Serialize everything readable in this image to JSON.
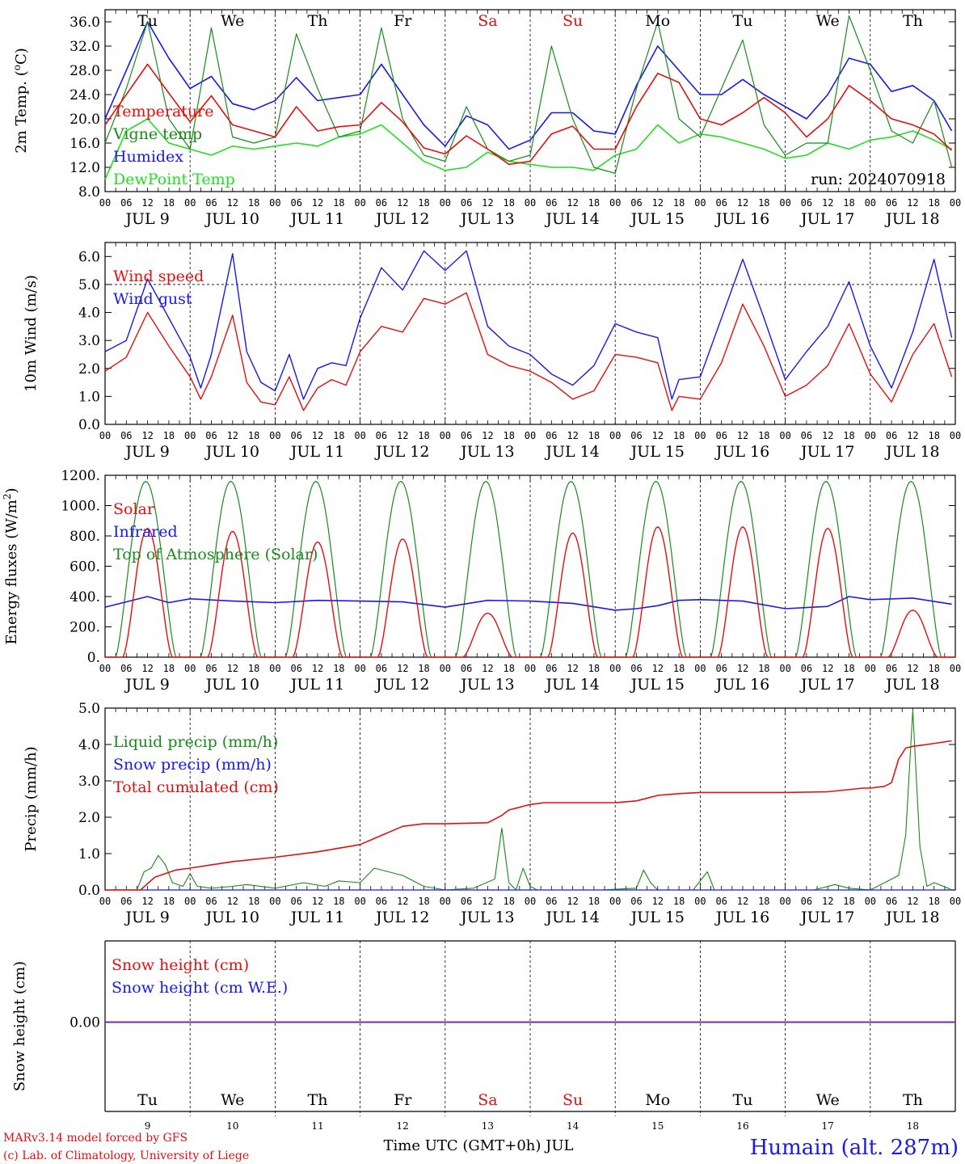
{
  "colors": {
    "red": "#e01010",
    "green": "#1a8a1a",
    "blue": "#1a1ae0",
    "light_green": "#22dd22",
    "purple": "#7b2a9a",
    "black": "#000000",
    "weekend": "#e01010"
  },
  "day_names": [
    "Tu",
    "We",
    "Th",
    "Fr",
    "Sa",
    "Su",
    "Mo",
    "Tu",
    "We",
    "Th"
  ],
  "weekend_idx": [
    4,
    5
  ],
  "date_labels": [
    "JUL  9",
    "JUL 10",
    "JUL 11",
    "JUL 12",
    "JUL 13",
    "JUL 14",
    "JUL 15",
    "JUL 16",
    "JUL 17",
    "JUL 18"
  ],
  "hour_ticks": [
    "00",
    "06",
    "12",
    "18"
  ],
  "final_tick": "00",
  "day_numbers": [
    "9",
    "10",
    "11",
    "12",
    "13",
    "14",
    "15",
    "16",
    "17",
    "18"
  ],
  "bottom_axis_title": "Time UTC (GMT+0h) JUL",
  "footer": {
    "line1": "MARv3.14 model forced by GFS",
    "line2": "(c) Lab. of Climatology, University of Liege",
    "station": "Humain (alt. 287m)"
  },
  "chart_data": [
    {
      "type": "line",
      "id": "temperature",
      "ylabel": "2m Temp. (",
      "ylabel_unit": "o",
      "ylabel_end": "C)",
      "ylim": [
        8,
        38
      ],
      "yticks": [
        "8.0",
        "12.0",
        "16.0",
        "20.0",
        "24.0",
        "28.0",
        "32.0",
        "36.0"
      ],
      "ytick_values": [
        8,
        12,
        16,
        20,
        24,
        28,
        32,
        36
      ],
      "annotation": "run: 2024070918",
      "legend": [
        "Temperature",
        "Vigne temp",
        "Humidex",
        "DewPoint Temp"
      ],
      "series": [
        {
          "name": "Temperature",
          "color": "red",
          "x": [
            0,
            12,
            24,
            30,
            36,
            42,
            48,
            54,
            60,
            66,
            72,
            78,
            84,
            90,
            96,
            102,
            108,
            114,
            120,
            126,
            132,
            138,
            144,
            150,
            156,
            162,
            168,
            174,
            180,
            186,
            192,
            198,
            204,
            210,
            216,
            222,
            228,
            234,
            239
          ],
          "y": [
            19,
            29,
            19.5,
            23.8,
            19,
            18,
            17,
            22,
            18,
            18.7,
            19,
            22.7,
            19.5,
            15.2,
            14.2,
            17.2,
            15,
            12.5,
            13,
            17.5,
            18.8,
            15,
            15,
            22,
            27.5,
            26,
            20,
            19,
            21,
            23.5,
            21,
            17,
            20,
            25.5,
            23,
            20,
            19,
            17.5,
            14.8
          ]
        },
        {
          "name": "Vigne temp",
          "color": "green",
          "x": [
            0,
            6,
            12,
            18,
            24,
            30,
            36,
            42,
            48,
            54,
            60,
            66,
            72,
            78,
            84,
            90,
            96,
            102,
            108,
            114,
            120,
            126,
            132,
            138,
            144,
            150,
            156,
            162,
            168,
            174,
            180,
            186,
            192,
            198,
            204,
            210,
            216,
            222,
            228,
            234,
            239
          ],
          "y": [
            16,
            25,
            36,
            20,
            15,
            35,
            17,
            16,
            17,
            34,
            25,
            17,
            18,
            35,
            20,
            14,
            13,
            22,
            15,
            13,
            14,
            32,
            20,
            12,
            11,
            25,
            36,
            20,
            17,
            25,
            33,
            19,
            14,
            16,
            16,
            37,
            28,
            18,
            16,
            23,
            12
          ]
        },
        {
          "name": "Humidex",
          "color": "blue",
          "x": [
            0,
            12,
            18,
            24,
            30,
            36,
            42,
            48,
            54,
            60,
            66,
            72,
            78,
            84,
            90,
            96,
            102,
            108,
            114,
            120,
            126,
            132,
            138,
            144,
            150,
            156,
            162,
            168,
            174,
            180,
            186,
            192,
            198,
            204,
            210,
            216,
            222,
            228,
            234,
            239
          ],
          "y": [
            20,
            36,
            30,
            25,
            27,
            22.5,
            21.5,
            23,
            26.8,
            23,
            23.5,
            24,
            29,
            24,
            19,
            15.5,
            20.5,
            19,
            15,
            16.5,
            21,
            21,
            18,
            17.5,
            25.5,
            32,
            28,
            24,
            24,
            26.5,
            24,
            22,
            20,
            24,
            30,
            29,
            24.5,
            25.5,
            23,
            18
          ]
        },
        {
          "name": "DewPoint Temp",
          "color": "light_green",
          "x": [
            0,
            6,
            12,
            18,
            24,
            30,
            36,
            42,
            48,
            54,
            60,
            66,
            72,
            78,
            84,
            90,
            96,
            102,
            108,
            114,
            120,
            126,
            132,
            138,
            144,
            150,
            156,
            162,
            168,
            174,
            180,
            186,
            192,
            198,
            204,
            210,
            216,
            222,
            228,
            234,
            239
          ],
          "y": [
            10,
            18,
            20,
            16,
            15,
            14,
            15.5,
            15,
            15.5,
            16,
            15.5,
            17,
            17.5,
            19,
            16,
            13,
            11.5,
            12,
            14.5,
            13,
            12.5,
            12,
            12,
            11.5,
            14,
            15,
            19,
            16,
            17.5,
            17,
            16,
            15,
            13.5,
            14,
            16,
            15,
            16.5,
            17,
            18,
            16.5,
            15
          ]
        }
      ]
    },
    {
      "type": "line",
      "id": "wind",
      "ylabel": "10m Wind (m/s)",
      "ylim": [
        0,
        6.5
      ],
      "yticks": [
        "0.0",
        "1.0",
        "2.0",
        "3.0",
        "4.0",
        "5.0",
        "6.0"
      ],
      "ytick_values": [
        0,
        1,
        2,
        3,
        4,
        5,
        6
      ],
      "reference_line": 5,
      "legend": [
        "Wind speed",
        "Wind gust"
      ],
      "series": [
        {
          "name": "Wind speed",
          "color": "red",
          "x": [
            0,
            6,
            12,
            18,
            24,
            27,
            30,
            36,
            40,
            44,
            48,
            52,
            56,
            60,
            64,
            68,
            72,
            78,
            84,
            90,
            96,
            102,
            108,
            114,
            120,
            126,
            132,
            138,
            144,
            150,
            156,
            160,
            162,
            168,
            174,
            180,
            186,
            192,
            198,
            204,
            210,
            216,
            222,
            228,
            234,
            239
          ],
          "y": [
            1.9,
            2.4,
            4,
            2.8,
            1.7,
            0.9,
            1.7,
            3.9,
            1.5,
            0.8,
            0.7,
            1.7,
            0.5,
            1.3,
            1.6,
            1.4,
            2.6,
            3.5,
            3.3,
            4.5,
            4.3,
            4.7,
            2.5,
            2.1,
            1.9,
            1.5,
            0.9,
            1.2,
            2.5,
            2.4,
            2.2,
            0.5,
            1,
            0.9,
            2.2,
            4.3,
            2.8,
            1,
            1.4,
            2.1,
            3.6,
            1.8,
            0.8,
            2.5,
            3.6,
            1.7
          ]
        },
        {
          "name": "Wind gust",
          "color": "blue",
          "x": [
            0,
            6,
            12,
            18,
            24,
            27,
            30,
            36,
            40,
            44,
            48,
            52,
            56,
            60,
            64,
            68,
            72,
            78,
            84,
            90,
            96,
            102,
            108,
            114,
            120,
            126,
            132,
            138,
            144,
            150,
            156,
            160,
            162,
            168,
            174,
            180,
            186,
            192,
            198,
            204,
            210,
            216,
            222,
            228,
            234,
            239
          ],
          "y": [
            2.6,
            3,
            5.2,
            3.8,
            2.4,
            1.3,
            2.5,
            6.1,
            2.6,
            1.5,
            1.2,
            2.5,
            0.9,
            2,
            2.2,
            2.1,
            3.8,
            5.6,
            4.8,
            6.2,
            5.5,
            6.2,
            3.5,
            2.8,
            2.5,
            1.8,
            1.4,
            2.1,
            3.6,
            3.3,
            3.1,
            0.9,
            1.6,
            1.7,
            3.8,
            5.9,
            3.8,
            1.6,
            2.6,
            3.5,
            5.1,
            2.8,
            1.3,
            3.3,
            5.9,
            3.1
          ]
        }
      ]
    },
    {
      "type": "line",
      "id": "energy",
      "ylabel": "Energy fluxes (W/m",
      "ylabel_sup": "2",
      "ylabel_end": ")",
      "ylim": [
        0,
        1200
      ],
      "yticks": [
        "0.",
        "200.",
        "400.",
        "600.",
        "800.",
        "1000.",
        "1200."
      ],
      "ytick_values": [
        0,
        200,
        400,
        600,
        800,
        1000,
        1200
      ],
      "legend": [
        "Solar",
        "Infrared",
        "Top of Atmosphere (Solar)"
      ],
      "solar_peaks": [
        850,
        830,
        760,
        780,
        290,
        820,
        860,
        860,
        850,
        310
      ],
      "toa_peak": 1160,
      "series": [
        {
          "name": "Solar",
          "color": "red"
        },
        {
          "name": "Infrared",
          "color": "blue",
          "x": [
            0,
            12,
            18,
            24,
            36,
            48,
            60,
            72,
            84,
            96,
            108,
            120,
            132,
            144,
            150,
            156,
            162,
            168,
            180,
            192,
            204,
            210,
            216,
            228,
            239
          ],
          "y": [
            330,
            400,
            360,
            385,
            370,
            360,
            375,
            370,
            365,
            330,
            375,
            370,
            355,
            310,
            320,
            340,
            375,
            380,
            370,
            320,
            335,
            400,
            380,
            390,
            350
          ]
        },
        {
          "name": "Top of Atmosphere (Solar)",
          "color": "green"
        }
      ]
    },
    {
      "type": "line",
      "id": "precip",
      "ylabel": "Precip (mm/h)",
      "ylim": [
        0,
        5
      ],
      "yticks": [
        "0.0",
        "1.0",
        "2.0",
        "3.0",
        "4.0",
        "5.0"
      ],
      "ytick_values": [
        0,
        1,
        2,
        3,
        4,
        5
      ],
      "legend": [
        "Liquid precip (mm/h)",
        "Snow precip (mm/h)",
        "Total cumulated (cm)"
      ],
      "series": [
        {
          "name": "Liquid precip (mm/h)",
          "color": "green",
          "x": [
            0,
            9,
            11,
            13,
            15,
            17,
            19,
            22,
            24,
            26,
            30,
            36,
            40,
            48,
            56,
            62,
            66,
            72,
            76,
            80,
            84,
            90,
            96,
            104,
            110,
            112,
            114,
            116,
            118,
            120,
            122,
            124,
            126,
            140,
            150,
            152,
            154,
            156,
            166,
            170,
            172,
            174,
            180,
            192,
            200,
            206,
            210,
            216,
            224,
            226,
            228,
            230,
            232,
            234,
            238,
            239
          ],
          "y": [
            0,
            0,
            0.5,
            0.6,
            0.95,
            0.7,
            0.2,
            0.1,
            0.45,
            0.1,
            0.05,
            0.1,
            0.15,
            0.05,
            0.2,
            0.1,
            0.25,
            0.2,
            0.6,
            0.5,
            0.4,
            0.1,
            0,
            0.05,
            0.3,
            1.7,
            0.2,
            0,
            0.6,
            0.1,
            0,
            0,
            0,
            0,
            0.05,
            0.55,
            0.2,
            0,
            0,
            0.5,
            0,
            0,
            0,
            0,
            0,
            0.15,
            0.05,
            0,
            0.4,
            1.5,
            4.95,
            1.2,
            0.1,
            0.2,
            0.05,
            0
          ]
        },
        {
          "name": "Snow precip (mm/h)",
          "color": "blue",
          "x": [
            0,
            239
          ],
          "y": [
            0,
            0
          ]
        },
        {
          "name": "Total cumulated (cm)",
          "color": "red",
          "x": [
            0,
            10,
            14,
            20,
            24,
            36,
            48,
            60,
            72,
            78,
            84,
            90,
            96,
            108,
            112,
            114,
            116,
            118,
            120,
            124,
            132,
            144,
            150,
            156,
            162,
            168,
            180,
            192,
            204,
            214,
            216,
            220,
            222,
            224,
            226,
            228,
            232,
            239
          ],
          "y": [
            0,
            0,
            0.35,
            0.55,
            0.6,
            0.78,
            0.9,
            1.05,
            1.25,
            1.5,
            1.75,
            1.82,
            1.82,
            1.85,
            2.05,
            2.2,
            2.25,
            2.3,
            2.35,
            2.4,
            2.4,
            2.4,
            2.45,
            2.6,
            2.65,
            2.68,
            2.68,
            2.68,
            2.7,
            2.8,
            2.8,
            2.85,
            2.95,
            3.6,
            3.9,
            3.95,
            4.0,
            4.1
          ]
        }
      ]
    },
    {
      "type": "line",
      "id": "snow",
      "ylabel": "Snow height (cm)",
      "ytick": "0.00",
      "legend": [
        "Snow height (cm)",
        "Snow height (cm W.E.)"
      ],
      "series": [
        {
          "name": "Snow height (cm)",
          "color": "red",
          "x": [
            0,
            239
          ],
          "y": [
            0,
            0
          ]
        },
        {
          "name": "Snow height (cm W.E.)",
          "color": "blue",
          "x": [
            0,
            239
          ],
          "y": [
            0,
            0
          ]
        }
      ]
    }
  ]
}
